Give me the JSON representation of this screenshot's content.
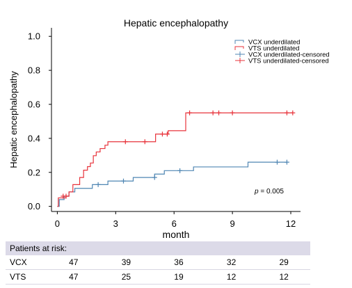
{
  "chart_data": {
    "type": "line",
    "chart_style": "step (Kaplan-Meier cumulative incidence)",
    "title": "Hepatic encephalopathy",
    "xlabel": "month",
    "ylabel": "Hepatic encephalopathy",
    "xlim": [
      -0.3,
      12.5
    ],
    "ylim": [
      -0.03,
      1.05
    ],
    "x_ticks": [
      0,
      3,
      6,
      9,
      12
    ],
    "y_ticks": [
      0.0,
      0.2,
      0.4,
      0.6,
      0.8,
      1.0
    ],
    "x_tick_labels": [
      "0",
      "3",
      "6",
      "9",
      "12"
    ],
    "y_tick_labels": [
      "0.0",
      "0.2",
      "0.4",
      "0.6",
      "0.8",
      "1.0"
    ],
    "grid": false,
    "legend_position": "top-right",
    "legend": [
      {
        "label": "VCX underdilated",
        "color": "#4f86b3",
        "marker": "step"
      },
      {
        "label": "VTS underdilated",
        "color": "#e8333b",
        "marker": "step"
      },
      {
        "label": "VCX underdilated-censored",
        "color": "#4f86b3",
        "marker": "plus"
      },
      {
        "label": "VTS underdilated-censored",
        "color": "#e8333b",
        "marker": "plus"
      }
    ],
    "annotation": {
      "prefix": "p",
      "text": " = 0.005"
    },
    "series": [
      {
        "name": "VCX underdilated",
        "color": "#4f86b3",
        "x": [
          0,
          0.1,
          0.35,
          0.6,
          0.9,
          1.8,
          2.6,
          3.9,
          5.0,
          5.5,
          6.0,
          7.0,
          9.8,
          11.8
        ],
        "y": [
          0.0,
          0.04,
          0.06,
          0.085,
          0.106,
          0.128,
          0.149,
          0.17,
          0.19,
          0.21,
          0.21,
          0.232,
          0.26,
          0.26
        ],
        "censored": [
          [
            2.1,
            0.128
          ],
          [
            3.4,
            0.149
          ],
          [
            5.0,
            0.17
          ],
          [
            6.3,
            0.21
          ],
          [
            11.3,
            0.26
          ],
          [
            11.8,
            0.26
          ]
        ]
      },
      {
        "name": "VTS underdilated",
        "color": "#e8333b",
        "x": [
          0,
          0.05,
          0.45,
          0.6,
          0.8,
          1.15,
          1.35,
          1.55,
          1.7,
          1.85,
          2.0,
          2.2,
          2.45,
          2.6,
          5.05,
          5.7,
          6.6,
          12.1
        ],
        "y": [
          0.0,
          0.05,
          0.06,
          0.085,
          0.128,
          0.17,
          0.213,
          0.234,
          0.255,
          0.298,
          0.32,
          0.34,
          0.36,
          0.38,
          0.425,
          0.445,
          0.55,
          0.55
        ],
        "censored": [
          [
            0.3,
            0.06
          ],
          [
            0.45,
            0.06
          ],
          [
            3.5,
            0.38
          ],
          [
            4.5,
            0.38
          ],
          [
            5.4,
            0.425
          ],
          [
            5.65,
            0.425
          ],
          [
            6.8,
            0.55
          ],
          [
            8.0,
            0.55
          ],
          [
            8.3,
            0.55
          ],
          [
            9.0,
            0.55
          ],
          [
            11.8,
            0.55
          ],
          [
            12.1,
            0.55
          ]
        ]
      }
    ]
  },
  "risk_table": {
    "header": "Patients at risk:",
    "rows": [
      {
        "group": "VCX",
        "values": [
          "47",
          "39",
          "36",
          "32",
          "29"
        ]
      },
      {
        "group": "VTS",
        "values": [
          "47",
          "25",
          "19",
          "12",
          "12"
        ]
      }
    ]
  }
}
